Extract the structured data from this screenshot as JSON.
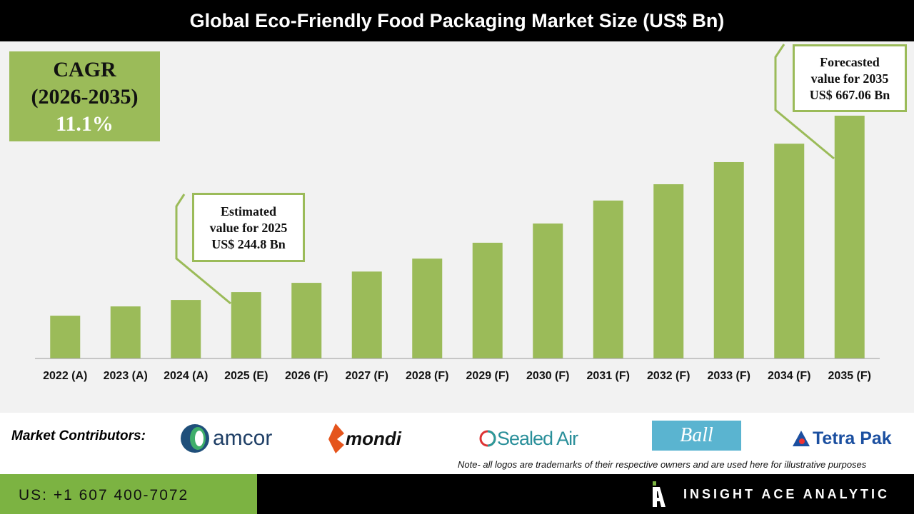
{
  "title": "Global Eco-Friendly Food Packaging Market Size (US$ Bn)",
  "cagr": {
    "label": "CAGR",
    "period": "(2026-2035)",
    "value": "11.1%"
  },
  "callouts": {
    "estimated": {
      "line1": "Estimated",
      "line2": "value for 2025",
      "line3": "US$ 244.8 Bn"
    },
    "forecasted": {
      "line1": "Forecasted",
      "line2": "value for 2035",
      "line3": "US$ 667.06 Bn"
    }
  },
  "chart_data": {
    "type": "bar",
    "title": "Global Eco-Friendly Food Packaging Market Size (US$ Bn)",
    "categories": [
      "2022 (A)",
      "2023 (A)",
      "2024 (A)",
      "2025 (E)",
      "2026 (F)",
      "2027 (F)",
      "2028 (F)",
      "2029 (F)",
      "2030 (F)",
      "2031 (F)",
      "2032 (F)",
      "2033 (F)",
      "2034 (F)",
      "2035 (F)"
    ],
    "values": [
      188.4,
      210.6,
      226,
      244.8,
      267,
      294,
      325,
      363,
      409,
      464,
      503,
      556,
      600,
      667.06
    ],
    "ylim": [
      86,
      700
    ],
    "grid": false,
    "bar_color": "#9bbb59"
  },
  "contributors": {
    "label": "Market Contributors:",
    "logos": [
      "amcor",
      "mondi",
      "Sealed Air",
      "Ball",
      "Tetra Pak"
    ]
  },
  "note": "Note- all logos are trademarks of their respective owners and are used here for illustrative purposes",
  "footer": {
    "phone": "US: +1 607 400-7072",
    "brand": "INSIGHT ACE ANALYTIC"
  },
  "colors": {
    "accent": "#9bbb59",
    "footer_green": "#7cb342"
  }
}
